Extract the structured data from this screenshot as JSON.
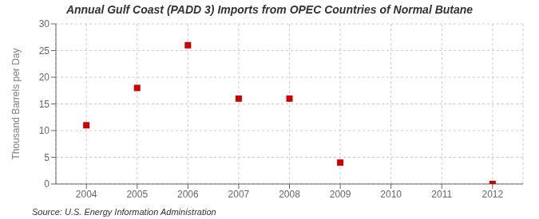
{
  "chart_data": {
    "type": "scatter",
    "title": "Annual Gulf Coast (PADD 3) Imports from OPEC Countries of Normal Butane",
    "y_label": "Thousand Barrels per Day",
    "annotation": "Source: U.S. Energy Information Administration",
    "x": [
      2004,
      2005,
      2006,
      2007,
      2008,
      2009,
      2012
    ],
    "values": [
      11,
      18,
      26,
      16,
      16,
      4,
      0
    ],
    "color": "#cc0000",
    "marker": "square",
    "xlim": [
      2003.4,
      2012.6
    ],
    "ylim": [
      0,
      30
    ],
    "xticks": [
      2004,
      2005,
      2006,
      2007,
      2008,
      2009,
      2010,
      2011,
      2012
    ],
    "yticks": [
      0,
      5,
      10,
      15,
      20,
      25,
      30
    ],
    "grid": true
  }
}
